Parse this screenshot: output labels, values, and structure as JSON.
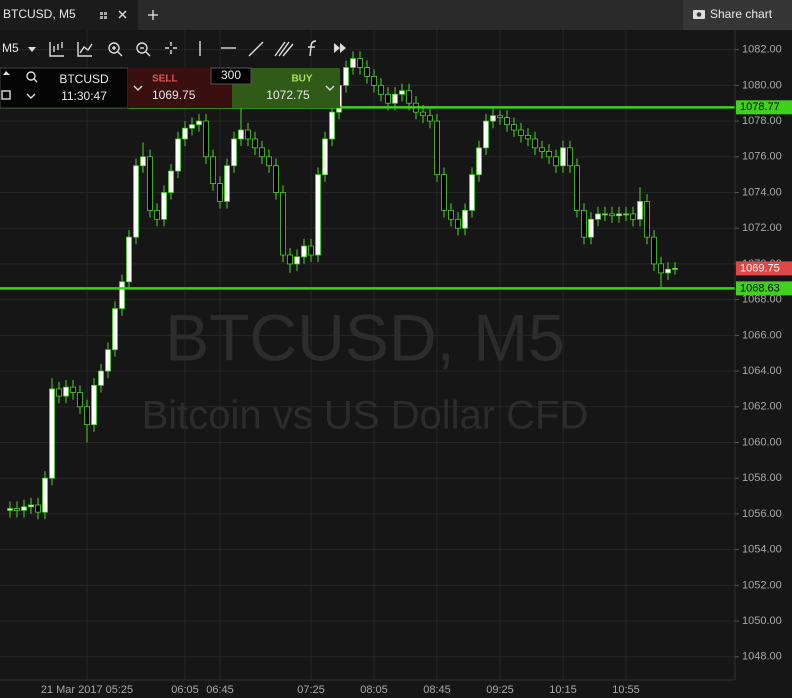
{
  "ui": {
    "tab": "BTCUSD, M5",
    "share": "Share chart",
    "timeframe": "M5",
    "panel": {
      "symbol": "BTCUSD",
      "time": "11:30:47",
      "sell_label": "SELL",
      "sell_price": 1069.75,
      "amount": 300,
      "buy_label": "BUY",
      "buy_price": 1072.75
    }
  },
  "chart_data": {
    "type": "candlestick",
    "watermark": {
      "title": "BTCUSD, M5",
      "subtitle": "Bitcoin vs US Dollar CFD"
    },
    "categories": [
      null,
      null,
      null,
      null,
      null,
      null,
      null,
      null,
      null,
      null,
      null,
      "21 Mar 2017 05:25",
      null,
      null,
      null,
      null,
      null,
      null,
      null,
      null,
      null,
      null,
      null,
      null,
      null,
      "06:05",
      null,
      null,
      null,
      null,
      "06:45",
      null,
      null,
      null,
      null,
      null,
      null,
      null,
      null,
      null,
      null,
      null,
      null,
      "07:25",
      null,
      null,
      null,
      null,
      null,
      null,
      null,
      null,
      "08:05",
      null,
      null,
      null,
      null,
      null,
      null,
      null,
      null,
      "08:45",
      null,
      null,
      null,
      null,
      null,
      null,
      null,
      null,
      "09:25",
      null,
      null,
      null,
      null,
      null,
      null,
      null,
      null,
      "10:15",
      null,
      null,
      null,
      null,
      null,
      null,
      null,
      null,
      "10:55",
      null,
      null,
      null,
      null,
      null,
      null,
      null
    ],
    "open": [
      1056.2,
      1056.3,
      1056.2,
      1056.4,
      1056.5,
      1056.1,
      1058.0,
      1063.0,
      1062.6,
      1063.1,
      1062.8,
      1062.0,
      1061.0,
      1063.2,
      1064.0,
      1065.2,
      1067.5,
      1069.0,
      1071.5,
      1075.5,
      1076.0,
      1073.0,
      1072.5,
      1074.0,
      1075.2,
      1077.0,
      1077.6,
      1077.8,
      1078.0,
      1076.0,
      1074.5,
      1073.5,
      1075.5,
      1077.0,
      1077.5,
      1077.0,
      1076.5,
      1076.0,
      1075.5,
      1074.0,
      1070.5,
      1070.0,
      1070.4,
      1071.0,
      1070.5,
      1075.0,
      1077.0,
      1078.5,
      1080.0,
      1081.0,
      1081.5,
      1081.0,
      1080.5,
      1080.0,
      1079.5,
      1079.0,
      1079.5,
      1079.7,
      1079.0,
      1078.5,
      1078.3,
      1078.0,
      1075.0,
      1073.0,
      1072.5,
      1072.0,
      1073.0,
      1075.0,
      1076.5,
      1078.0,
      1078.3,
      1078.2,
      1077.8,
      1077.5,
      1077.2,
      1077.0,
      1076.5,
      1076.3,
      1076.0,
      1075.5,
      1076.5,
      1075.5,
      1073.0,
      1071.5,
      1072.5,
      1072.8,
      1072.8,
      1072.7,
      1072.8,
      1072.8,
      1072.5,
      1073.5,
      1071.5,
      1070.0,
      1069.5,
      1069.7
    ],
    "high": [
      1056.7,
      1056.7,
      1056.8,
      1056.9,
      1056.9,
      1058.4,
      1063.6,
      1063.4,
      1063.5,
      1063.5,
      1063.2,
      1062.4,
      1063.6,
      1064.4,
      1065.6,
      1067.9,
      1069.4,
      1071.9,
      1075.9,
      1076.8,
      1076.4,
      1073.4,
      1074.4,
      1075.6,
      1077.4,
      1078.0,
      1078.2,
      1078.4,
      1078.4,
      1076.4,
      1074.9,
      1075.9,
      1077.4,
      1078.7,
      1077.9,
      1077.4,
      1076.9,
      1076.4,
      1075.9,
      1074.4,
      1070.9,
      1070.8,
      1071.4,
      1071.4,
      1075.4,
      1077.4,
      1078.9,
      1080.4,
      1081.4,
      1081.9,
      1081.9,
      1081.4,
      1080.9,
      1080.4,
      1079.9,
      1079.9,
      1080.1,
      1080.1,
      1079.4,
      1078.9,
      1078.7,
      1078.4,
      1075.4,
      1073.4,
      1072.9,
      1073.4,
      1075.4,
      1076.9,
      1078.4,
      1078.7,
      1078.6,
      1078.6,
      1078.2,
      1077.9,
      1077.6,
      1077.4,
      1076.9,
      1076.7,
      1076.4,
      1076.9,
      1076.9,
      1075.9,
      1073.4,
      1072.9,
      1073.2,
      1073.2,
      1073.2,
      1073.2,
      1073.2,
      1073.2,
      1074.3,
      1073.9,
      1071.9,
      1070.4,
      1070.1,
      1070.1
    ],
    "low": [
      1055.8,
      1055.8,
      1055.8,
      1056.0,
      1055.7,
      1055.7,
      1057.6,
      1062.2,
      1062.2,
      1062.4,
      1061.6,
      1060.0,
      1060.6,
      1062.8,
      1063.6,
      1064.8,
      1067.1,
      1068.6,
      1071.1,
      1075.1,
      1072.6,
      1072.1,
      1072.1,
      1073.6,
      1074.8,
      1076.6,
      1077.2,
      1077.4,
      1075.6,
      1074.1,
      1073.1,
      1073.1,
      1075.1,
      1076.6,
      1076.6,
      1076.1,
      1075.6,
      1075.1,
      1073.6,
      1070.1,
      1069.5,
      1069.6,
      1070.0,
      1070.1,
      1070.1,
      1074.6,
      1076.6,
      1078.1,
      1079.6,
      1080.6,
      1080.6,
      1080.1,
      1079.6,
      1079.1,
      1078.6,
      1078.6,
      1079.1,
      1078.6,
      1078.1,
      1077.9,
      1077.6,
      1074.6,
      1072.6,
      1072.1,
      1071.6,
      1071.6,
      1072.6,
      1074.6,
      1076.1,
      1077.6,
      1077.8,
      1077.4,
      1077.1,
      1076.8,
      1076.6,
      1076.1,
      1075.9,
      1075.6,
      1075.1,
      1075.1,
      1075.1,
      1072.6,
      1071.1,
      1071.1,
      1072.1,
      1072.4,
      1072.3,
      1072.3,
      1072.4,
      1072.1,
      1072.1,
      1071.1,
      1069.6,
      1068.7,
      1069.1,
      1069.4
    ],
    "close": [
      1056.3,
      1056.2,
      1056.4,
      1056.5,
      1056.1,
      1058.0,
      1063.0,
      1062.6,
      1063.1,
      1062.8,
      1062.0,
      1061.0,
      1063.2,
      1064.0,
      1065.2,
      1067.5,
      1069.0,
      1071.5,
      1075.5,
      1076.0,
      1073.0,
      1072.5,
      1074.0,
      1075.2,
      1077.0,
      1077.6,
      1077.8,
      1078.0,
      1076.0,
      1074.5,
      1073.5,
      1075.5,
      1077.0,
      1077.5,
      1077.0,
      1076.5,
      1076.0,
      1075.5,
      1074.0,
      1070.5,
      1070.0,
      1070.4,
      1071.0,
      1070.5,
      1075.0,
      1077.0,
      1078.5,
      1080.0,
      1081.0,
      1081.5,
      1081.0,
      1080.5,
      1080.0,
      1079.5,
      1079.0,
      1079.5,
      1079.7,
      1079.0,
      1078.5,
      1078.3,
      1078.0,
      1075.0,
      1073.0,
      1072.5,
      1072.0,
      1073.0,
      1075.0,
      1076.5,
      1078.0,
      1078.3,
      1078.2,
      1077.8,
      1077.5,
      1077.2,
      1077.0,
      1076.5,
      1076.3,
      1076.0,
      1075.5,
      1076.5,
      1075.5,
      1073.0,
      1071.5,
      1072.5,
      1072.8,
      1072.8,
      1072.7,
      1072.8,
      1072.8,
      1072.5,
      1073.5,
      1071.5,
      1070.0,
      1069.5,
      1069.7,
      1069.75
    ],
    "up_color": "#ffffff",
    "down_color": "#000000",
    "wick_color": "#4fd32a",
    "levels": [
      {
        "value": 1078.77,
        "color": "#3fd11c"
      },
      {
        "value": 1068.63,
        "color": "#3fd11c"
      }
    ],
    "current_price": {
      "value": 1069.75,
      "color": "#e04848"
    },
    "ylim": [
      1046.7,
      1083.1
    ],
    "yticks": [
      {
        "value": 1048,
        "label": "1048.00"
      },
      {
        "value": 1050,
        "label": "1050.00"
      },
      {
        "value": 1052,
        "label": "1052.00"
      },
      {
        "value": 1054,
        "label": "1054.00"
      },
      {
        "value": 1056,
        "label": "1056.00"
      },
      {
        "value": 1058,
        "label": "1058.00"
      },
      {
        "value": 1060,
        "label": "1060.00"
      },
      {
        "value": 1062,
        "label": "1062.00"
      },
      {
        "value": 1064,
        "label": "1064.00"
      },
      {
        "value": 1066,
        "label": "1066.00"
      },
      {
        "value": 1068,
        "label": "1068.00"
      },
      {
        "value": 1070,
        "label": "1070.00"
      },
      {
        "value": 1072,
        "label": "1072.00"
      },
      {
        "value": 1074,
        "label": "1074.00"
      },
      {
        "value": 1076,
        "label": "1076.00"
      },
      {
        "value": 1078,
        "label": "1078.00"
      },
      {
        "value": 1080,
        "label": "1080.00"
      },
      {
        "value": 1082,
        "label": "1082.00"
      }
    ],
    "grid": true
  }
}
